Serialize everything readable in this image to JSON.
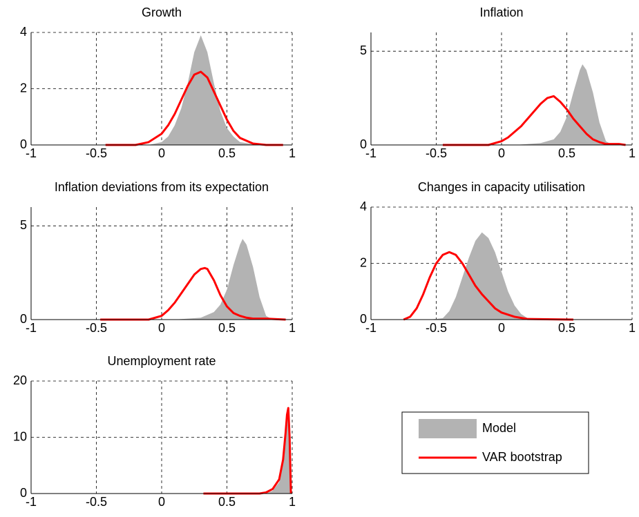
{
  "chart_data": [
    {
      "type": "density",
      "title": "Growth",
      "xlim": [
        -1,
        1
      ],
      "ylim": [
        0,
        4
      ],
      "xticks": [
        -1,
        -0.5,
        0,
        0.5,
        1
      ],
      "yticks": [
        0,
        2,
        4
      ],
      "grid": true,
      "series": [
        {
          "name": "Model",
          "color": "#b3b3b3",
          "kind": "area",
          "x": [
            -0.1,
            0,
            0.05,
            0.1,
            0.15,
            0.2,
            0.25,
            0.3,
            0.35,
            0.4,
            0.45,
            0.5,
            0.55,
            0.6,
            0.7,
            0.8
          ],
          "values": [
            0,
            0.1,
            0.3,
            0.7,
            1.3,
            2.2,
            3.3,
            3.9,
            3.3,
            2.2,
            1.2,
            0.6,
            0.3,
            0.1,
            0.03,
            0
          ]
        },
        {
          "name": "VAR bootstrap",
          "color": "#ff0000",
          "kind": "line",
          "x": [
            -0.43,
            -0.2,
            -0.1,
            0,
            0.05,
            0.1,
            0.15,
            0.2,
            0.25,
            0.3,
            0.35,
            0.4,
            0.45,
            0.5,
            0.55,
            0.6,
            0.7,
            0.8,
            0.93
          ],
          "values": [
            0,
            0,
            0.1,
            0.4,
            0.7,
            1.1,
            1.6,
            2.1,
            2.5,
            2.6,
            2.4,
            1.9,
            1.4,
            0.9,
            0.5,
            0.25,
            0.05,
            0,
            0
          ]
        }
      ]
    },
    {
      "type": "density",
      "title": "Inflation",
      "xlim": [
        -1,
        1
      ],
      "ylim": [
        0,
        6
      ],
      "xticks": [
        -1,
        -0.5,
        0,
        0.5,
        1
      ],
      "yticks": [
        0,
        5
      ],
      "grid": true,
      "series": [
        {
          "name": "Model",
          "color": "#b3b3b3",
          "kind": "area",
          "x": [
            0.1,
            0.3,
            0.4,
            0.45,
            0.5,
            0.55,
            0.6,
            0.62,
            0.65,
            0.7,
            0.75,
            0.8,
            0.85
          ],
          "values": [
            0,
            0.1,
            0.3,
            0.7,
            1.5,
            2.8,
            4.0,
            4.3,
            4.0,
            2.8,
            1.2,
            0.2,
            0
          ]
        },
        {
          "name": "VAR bootstrap",
          "color": "#ff0000",
          "kind": "line",
          "x": [
            -0.45,
            -0.1,
            0,
            0.05,
            0.1,
            0.15,
            0.2,
            0.25,
            0.3,
            0.35,
            0.4,
            0.45,
            0.5,
            0.55,
            0.6,
            0.65,
            0.7,
            0.75,
            0.8,
            0.9,
            0.95
          ],
          "values": [
            0,
            0,
            0.2,
            0.4,
            0.7,
            1.0,
            1.4,
            1.8,
            2.2,
            2.5,
            2.6,
            2.3,
            1.9,
            1.4,
            1.0,
            0.6,
            0.3,
            0.15,
            0.05,
            0.05,
            0
          ]
        }
      ]
    },
    {
      "type": "density",
      "title": "Inflation deviations from its expectation",
      "xlim": [
        -1,
        1
      ],
      "ylim": [
        0,
        6
      ],
      "xticks": [
        -1,
        -0.5,
        0,
        0.5,
        1
      ],
      "yticks": [
        0,
        5
      ],
      "grid": true,
      "series": [
        {
          "name": "Model",
          "color": "#b3b3b3",
          "kind": "area",
          "x": [
            0.1,
            0.3,
            0.4,
            0.45,
            0.5,
            0.55,
            0.6,
            0.62,
            0.65,
            0.7,
            0.75,
            0.8,
            0.85
          ],
          "values": [
            0,
            0.1,
            0.4,
            0.8,
            1.6,
            2.9,
            4.0,
            4.3,
            4.0,
            2.8,
            1.2,
            0.2,
            0
          ]
        },
        {
          "name": "VAR bootstrap",
          "color": "#ff0000",
          "kind": "line",
          "x": [
            -0.47,
            -0.1,
            0,
            0.05,
            0.1,
            0.15,
            0.2,
            0.25,
            0.3,
            0.33,
            0.35,
            0.4,
            0.45,
            0.5,
            0.55,
            0.6,
            0.65,
            0.7,
            0.8,
            0.95
          ],
          "values": [
            0,
            0,
            0.2,
            0.5,
            0.9,
            1.4,
            1.9,
            2.4,
            2.7,
            2.75,
            2.7,
            2.1,
            1.3,
            0.7,
            0.35,
            0.2,
            0.1,
            0.05,
            0.05,
            0
          ]
        }
      ]
    },
    {
      "type": "density",
      "title": "Changes in capacity utilisation",
      "xlim": [
        -1,
        1
      ],
      "ylim": [
        0,
        4
      ],
      "xticks": [
        -1,
        -0.5,
        0,
        0.5,
        1
      ],
      "yticks": [
        0,
        2,
        4
      ],
      "grid": true,
      "series": [
        {
          "name": "Model",
          "color": "#b3b3b3",
          "kind": "area",
          "x": [
            -0.55,
            -0.45,
            -0.4,
            -0.35,
            -0.3,
            -0.25,
            -0.2,
            -0.15,
            -0.1,
            -0.05,
            0,
            0.05,
            0.1,
            0.15,
            0.2,
            0.25
          ],
          "values": [
            0,
            0.05,
            0.3,
            0.8,
            1.5,
            2.2,
            2.8,
            3.1,
            2.9,
            2.4,
            1.7,
            1.0,
            0.5,
            0.2,
            0.05,
            0
          ]
        },
        {
          "name": "VAR bootstrap",
          "color": "#ff0000",
          "kind": "line",
          "x": [
            -0.75,
            -0.7,
            -0.65,
            -0.6,
            -0.55,
            -0.5,
            -0.45,
            -0.4,
            -0.35,
            -0.3,
            -0.25,
            -0.2,
            -0.15,
            -0.1,
            -0.05,
            0,
            0.1,
            0.2,
            0.55
          ],
          "values": [
            0,
            0.1,
            0.4,
            0.9,
            1.5,
            2.0,
            2.3,
            2.4,
            2.3,
            2.0,
            1.6,
            1.2,
            0.9,
            0.65,
            0.4,
            0.25,
            0.1,
            0.02,
            0
          ]
        }
      ]
    },
    {
      "type": "density",
      "title": "Unemployment rate",
      "xlim": [
        -1,
        1
      ],
      "ylim": [
        0,
        20
      ],
      "xticks": [
        -1,
        -0.5,
        0,
        0.5,
        1
      ],
      "yticks": [
        0,
        10,
        20
      ],
      "grid": true,
      "series": [
        {
          "name": "Model",
          "color": "#b3b3b3",
          "kind": "area",
          "x": [
            0.8,
            0.85,
            0.9,
            0.93,
            0.95,
            0.96,
            0.97,
            0.98,
            0.99
          ],
          "values": [
            0,
            0.5,
            2,
            6,
            12,
            14,
            15,
            8,
            0
          ]
        },
        {
          "name": "VAR bootstrap",
          "color": "#ff0000",
          "kind": "line",
          "x": [
            0.32,
            0.75,
            0.8,
            0.85,
            0.9,
            0.93,
            0.95,
            0.96,
            0.97,
            0.98,
            0.99
          ],
          "values": [
            0,
            0,
            0.2,
            0.8,
            2.5,
            6,
            11,
            14,
            15.2,
            10,
            0
          ]
        }
      ]
    }
  ]
}
